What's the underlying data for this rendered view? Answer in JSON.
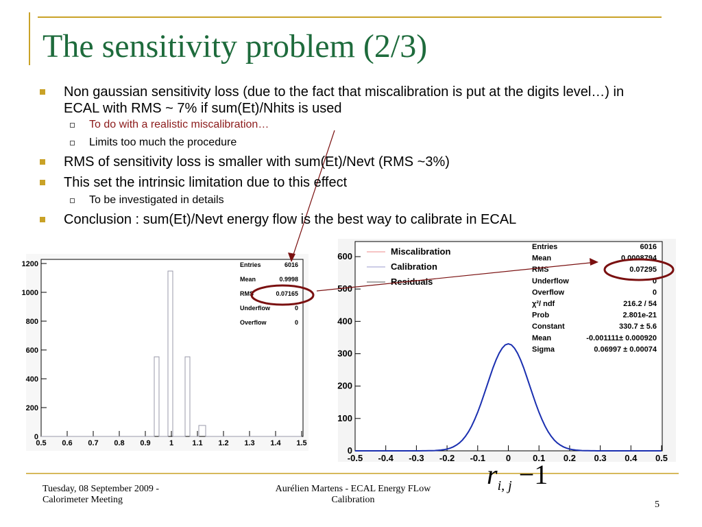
{
  "slide": {
    "title": "The sensitivity problem (2/3)",
    "bullets": [
      {
        "level": 1,
        "text": "Non gaussian sensitivity loss (due to the fact that miscalibration is put at the digits level…) in ECAL with RMS ~ 7% if sum(Et)/Nhits is used"
      },
      {
        "level": 2,
        "text": "To do with a realistic miscalibration…",
        "color": "#8b1a1a"
      },
      {
        "level": 2,
        "text": "Limits too much the procedure"
      },
      {
        "level": 1,
        "text": "RMS of sensitivity loss is smaller with sum(Et)/Nevt (RMS ~3%)"
      },
      {
        "level": 1,
        "text": "This set the intrinsic limitation due to this effect"
      },
      {
        "level": 2,
        "text": "To be investigated in details"
      },
      {
        "level": 1,
        "text": "Conclusion : sum(Et)/Nevt energy flow is the best way to calibrate in ECAL"
      }
    ],
    "left_plot": {
      "xticks": [
        "0.5",
        "0.6",
        "0.7",
        "0.8",
        "0.9",
        "1",
        "1.1",
        "1.2",
        "1.3",
        "1.4",
        "1.5"
      ],
      "yticks": [
        "0",
        "200",
        "400",
        "600",
        "800",
        "1000",
        "1200"
      ],
      "stats": [
        [
          "Entries",
          "6016"
        ],
        [
          "Mean",
          "0.9998"
        ],
        [
          "RMS",
          "0.07165"
        ],
        [
          "Underflow",
          "0"
        ],
        [
          "Overflow",
          "0"
        ]
      ]
    },
    "right_plot": {
      "xticks": [
        "-0.5",
        "-0.4",
        "-0.3",
        "-0.2",
        "-0.1",
        "0",
        "0.1",
        "0.2",
        "0.3",
        "0.4",
        "0.5"
      ],
      "yticks": [
        "0",
        "100",
        "200",
        "300",
        "400",
        "500",
        "600"
      ],
      "legend": [
        "Miscalibration",
        "Calibration",
        "Residuals"
      ],
      "stats": [
        [
          "Entries",
          "6016"
        ],
        [
          "Mean",
          "0.0008794"
        ],
        [
          "RMS",
          "0.07295"
        ],
        [
          "Underflow",
          "0"
        ],
        [
          "Overflow",
          "0"
        ],
        [
          "χ²/ ndf",
          "216.2 / 54"
        ],
        [
          "Prob",
          "2.801e-21"
        ],
        [
          "Constant",
          "330.7 ± 5.6"
        ],
        [
          "Mean",
          "-0.001111± 0.000920"
        ],
        [
          "Sigma",
          "0.06997 ± 0.00074"
        ]
      ]
    },
    "formula": {
      "base": "r",
      "sub": "i, j",
      "rest": "−1"
    },
    "footer": {
      "date": "Tuesday, 08 September 2009 - Calorimeter Meeting",
      "author": "Aurélien Martens - ECAL Energy FLow Calibration",
      "page": "5"
    }
  }
}
